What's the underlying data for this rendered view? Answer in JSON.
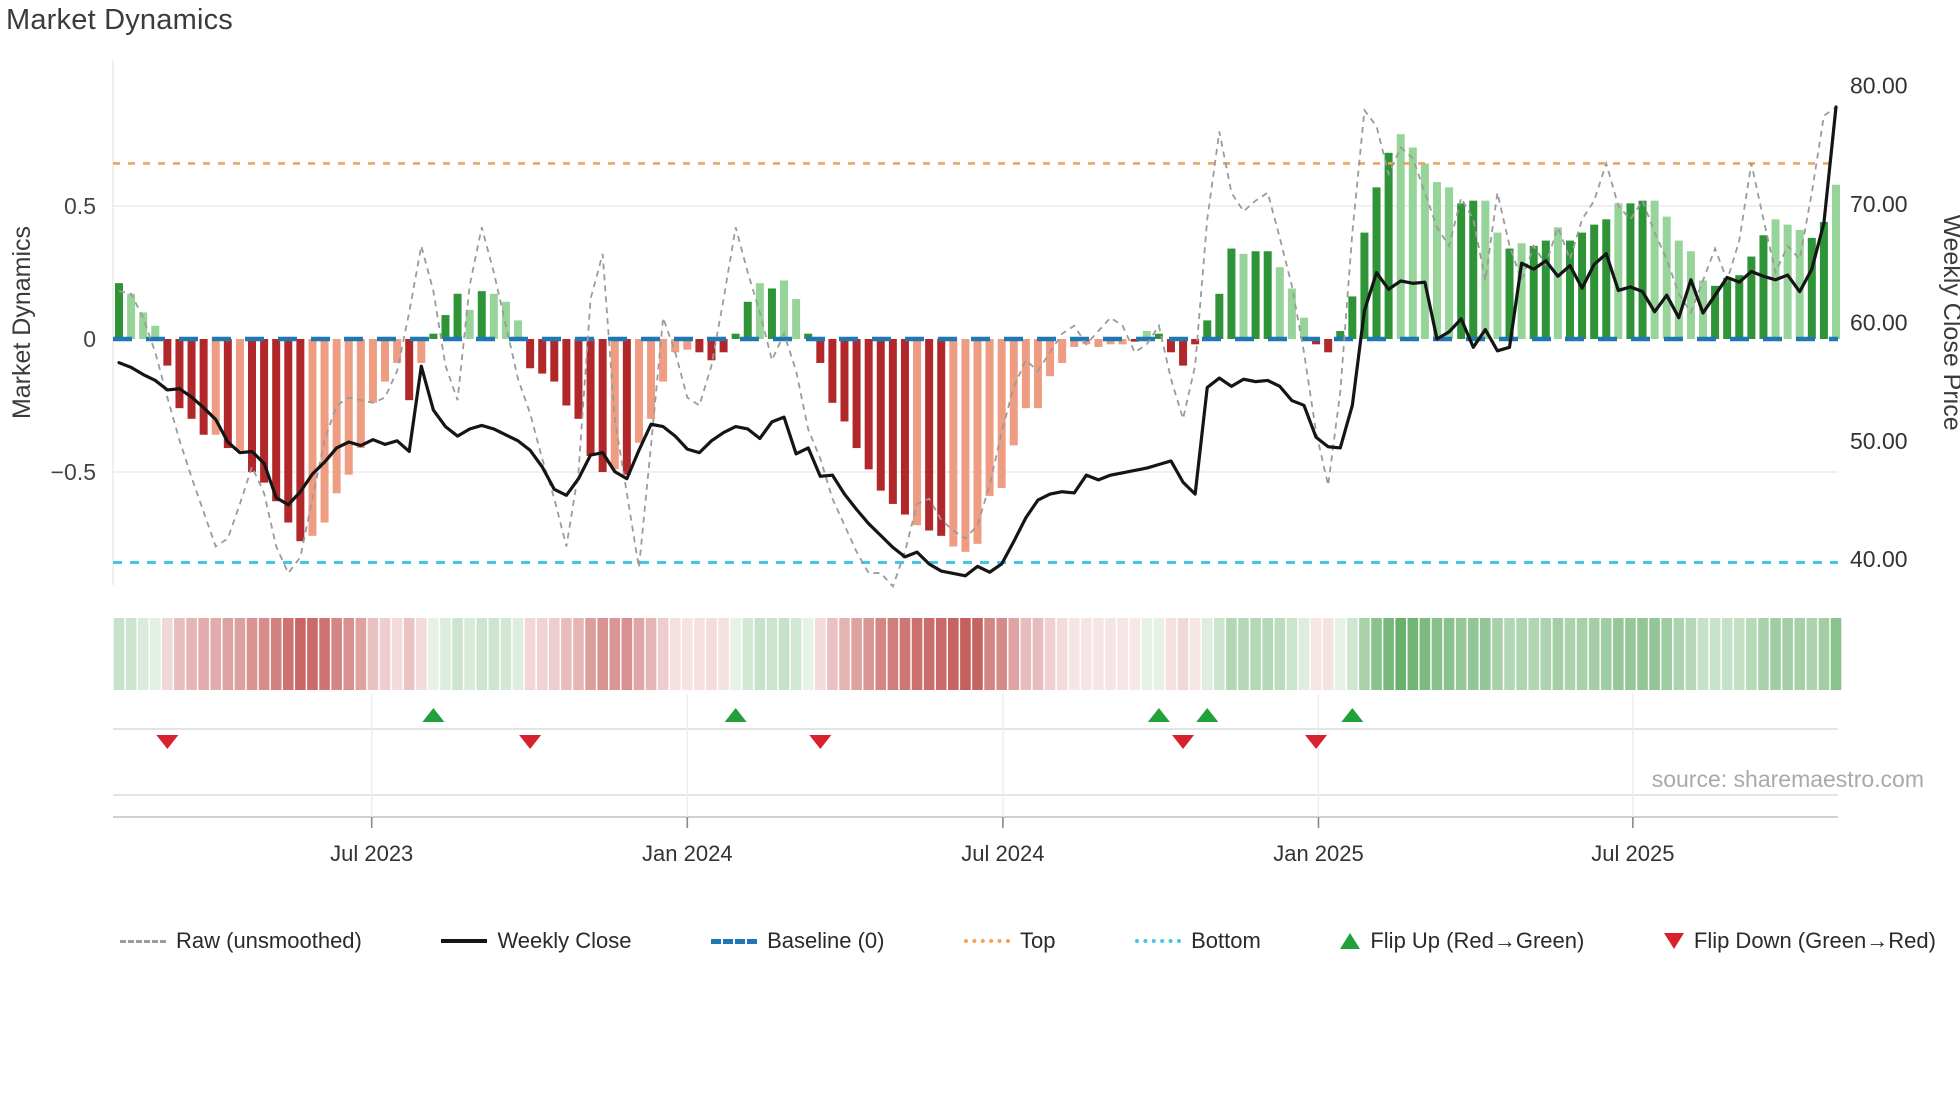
{
  "title": "Market Dynamics",
  "source": "source: sharemaestro.com",
  "colors": {
    "bar_pos_dark": "#2f9438",
    "bar_pos_light": "#97d49a",
    "bar_neg_dark": "#b2282a",
    "bar_neg_light": "#ee9d82",
    "raw_line": "#9b9b9b",
    "close_line": "#151515",
    "baseline": "#1f77b4",
    "top_line": "#f3a25a",
    "bottom_line": "#41c7e8",
    "flip_up": "#22a03c",
    "flip_down": "#d7212e",
    "grid": "#ececec",
    "axis_line": "#e8e8e8",
    "panel_line": "#dcdcdc",
    "frame_line": "#c9c9c9",
    "tick_text": "#333333",
    "title_text": "#3b3b3b",
    "heat_pos": [
      47,
      146,
      53
    ],
    "heat_neg": [
      178,
      40,
      38
    ]
  },
  "chart_data": {
    "type": "composite",
    "title": "Market Dynamics",
    "subplots": [
      "momentum bars + raw line + weekly close price line",
      "signal heatmap strip",
      "flip marker lane"
    ],
    "x_axis": {
      "tick_labels": [
        "Jul 2023",
        "Jan 2024",
        "Jul 2024",
        "Jan 2025",
        "Jul 2025"
      ],
      "tick_weeks": [
        21.9,
        48.0,
        74.1,
        100.2,
        126.2
      ],
      "n_weeks": 143
    },
    "y_left": {
      "title": "Market Dynamics",
      "ticks": [
        {
          "label": "0.5",
          "v": 0.5
        },
        {
          "label": "0",
          "v": 0
        },
        {
          "label": "−0.5",
          "v": -0.5
        }
      ],
      "range": [
        -0.98,
        1.0
      ]
    },
    "y_right": {
      "title": "Weekly Close Price",
      "ticks": [
        {
          "label": "80.00",
          "p": 80
        },
        {
          "label": "70.00",
          "p": 70
        },
        {
          "label": "60.00",
          "p": 60
        },
        {
          "label": "50.00",
          "p": 50
        },
        {
          "label": "40.00",
          "p": 40
        }
      ]
    },
    "thresholds": {
      "baseline": 0,
      "top": 0.66,
      "bottom": -0.84
    },
    "markers": {
      "flip_up_weeks": [
        27,
        52,
        87,
        91,
        103
      ],
      "flip_down_weeks": [
        5,
        35,
        59,
        89,
        100
      ]
    },
    "series": {
      "momentum_smoothed": [
        0.21,
        0.17,
        0.1,
        0.05,
        -0.1,
        -0.26,
        -0.3,
        -0.36,
        -0.36,
        -0.41,
        -0.42,
        -0.5,
        -0.54,
        -0.61,
        -0.69,
        -0.76,
        -0.74,
        -0.69,
        -0.58,
        -0.51,
        -0.41,
        -0.24,
        -0.16,
        -0.09,
        -0.23,
        -0.09,
        0.02,
        0.09,
        0.17,
        0.11,
        0.18,
        0.17,
        0.14,
        0.07,
        -0.11,
        -0.13,
        -0.16,
        -0.25,
        -0.3,
        -0.44,
        -0.5,
        -0.49,
        -0.51,
        -0.39,
        -0.3,
        -0.16,
        -0.05,
        -0.04,
        -0.05,
        -0.08,
        -0.05,
        0.02,
        0.14,
        0.21,
        0.19,
        0.22,
        0.15,
        0.02,
        -0.09,
        -0.24,
        -0.31,
        -0.41,
        -0.49,
        -0.57,
        -0.62,
        -0.66,
        -0.7,
        -0.72,
        -0.74,
        -0.78,
        -0.8,
        -0.77,
        -0.59,
        -0.56,
        -0.4,
        -0.26,
        -0.26,
        -0.14,
        -0.09,
        -0.03,
        -0.02,
        -0.03,
        -0.02,
        -0.02,
        -0.01,
        0.03,
        0.02,
        -0.05,
        -0.1,
        -0.02,
        0.07,
        0.17,
        0.34,
        0.32,
        0.33,
        0.33,
        0.27,
        0.19,
        0.08,
        -0.02,
        -0.05,
        0.03,
        0.16,
        0.4,
        0.57,
        0.7,
        0.77,
        0.72,
        0.66,
        0.59,
        0.57,
        0.51,
        0.52,
        0.52,
        0.4,
        0.34,
        0.36,
        0.35,
        0.37,
        0.42,
        0.37,
        0.4,
        0.43,
        0.45,
        0.51,
        0.51,
        0.52,
        0.52,
        0.46,
        0.37,
        0.33,
        0.22,
        0.2,
        0.23,
        0.24,
        0.31,
        0.39,
        0.45,
        0.43,
        0.41,
        0.38,
        0.44,
        0.58
      ],
      "shade": "dlllddddldldddddlllllllldldddldllldddddddldllllldddddldlldddddddddlddllllllllllllllldldddddddlddllldddddddlllllddlldlddlddddlddllllldddddllldd",
      "momentum_raw": [
        0.18,
        0.17,
        0.08,
        -0.05,
        -0.22,
        -0.38,
        -0.52,
        -0.65,
        -0.78,
        -0.75,
        -0.62,
        -0.48,
        -0.58,
        -0.78,
        -0.88,
        -0.82,
        -0.6,
        -0.38,
        -0.25,
        -0.22,
        -0.23,
        -0.24,
        -0.22,
        -0.12,
        0.1,
        0.35,
        0.18,
        -0.1,
        -0.23,
        0.2,
        0.42,
        0.25,
        0.05,
        -0.15,
        -0.28,
        -0.45,
        -0.6,
        -0.78,
        -0.5,
        0.15,
        0.32,
        -0.3,
        -0.58,
        -0.86,
        -0.4,
        0.08,
        -0.05,
        -0.22,
        -0.25,
        -0.1,
        0.15,
        0.42,
        0.25,
        0.1,
        -0.08,
        0.02,
        -0.12,
        -0.34,
        -0.45,
        -0.6,
        -0.7,
        -0.8,
        -0.88,
        -0.88,
        -0.93,
        -0.8,
        -0.62,
        -0.6,
        -0.68,
        -0.72,
        -0.75,
        -0.7,
        -0.55,
        -0.35,
        -0.18,
        -0.08,
        -0.12,
        -0.05,
        0.02,
        0.05,
        -0.02,
        0.03,
        0.08,
        0.05,
        -0.05,
        -0.02,
        0.05,
        -0.15,
        -0.3,
        -0.1,
        0.45,
        0.78,
        0.55,
        0.48,
        0.52,
        0.55,
        0.38,
        0.2,
        -0.05,
        -0.35,
        -0.55,
        -0.2,
        0.4,
        0.86,
        0.8,
        0.62,
        0.72,
        0.68,
        0.55,
        0.42,
        0.35,
        0.53,
        0.45,
        0.22,
        0.55,
        0.35,
        0.22,
        0.35,
        0.28,
        0.42,
        0.3,
        0.45,
        0.52,
        0.66,
        0.5,
        0.45,
        0.52,
        0.4,
        0.3,
        0.17,
        0.1,
        0.22,
        0.34,
        0.22,
        0.37,
        0.66,
        0.45,
        0.25,
        0.35,
        0.3,
        0.55,
        0.84,
        0.87
      ],
      "weekly_close": [
        56.6,
        56.2,
        55.6,
        55.1,
        54.3,
        54.4,
        53.7,
        52.8,
        51.8,
        49.9,
        49.0,
        49.1,
        48.1,
        45.2,
        44.6,
        45.7,
        47.2,
        48.2,
        49.4,
        49.9,
        49.6,
        50.1,
        49.7,
        50.0,
        49.1,
        56.3,
        52.6,
        51.2,
        50.4,
        51.0,
        51.3,
        51.0,
        50.5,
        50.0,
        49.2,
        47.8,
        45.9,
        45.4,
        46.8,
        48.8,
        49.0,
        47.4,
        46.8,
        49.2,
        51.4,
        51.2,
        50.4,
        49.3,
        49.0,
        50.0,
        50.7,
        51.2,
        51.0,
        50.2,
        51.6,
        52.0,
        48.9,
        49.4,
        47.0,
        47.1,
        45.5,
        44.2,
        43.0,
        42.0,
        41.0,
        40.2,
        40.6,
        39.6,
        39.0,
        38.8,
        38.6,
        39.4,
        38.9,
        39.6,
        41.5,
        43.5,
        45.0,
        45.5,
        45.7,
        45.6,
        47.1,
        46.7,
        47.1,
        47.3,
        47.5,
        47.7,
        48.0,
        48.3,
        46.5,
        45.5,
        54.5,
        55.3,
        54.6,
        55.2,
        55.0,
        55.1,
        54.6,
        53.4,
        53.0,
        50.3,
        49.5,
        49.4,
        53.0,
        61.0,
        64.2,
        62.8,
        63.5,
        63.3,
        63.4,
        58.6,
        59.2,
        60.3,
        57.9,
        59.4,
        57.6,
        57.9,
        65.0,
        64.5,
        65.2,
        63.9,
        64.8,
        62.9,
        64.9,
        65.8,
        62.7,
        63.0,
        62.6,
        60.9,
        62.3,
        60.4,
        63.6,
        60.8,
        62.3,
        63.8,
        63.4,
        64.3,
        63.9,
        63.6,
        64.0,
        62.6,
        64.5,
        68.4,
        78.2
      ]
    },
    "legend_position": "bottom"
  },
  "legend": {
    "items": [
      {
        "key": "raw",
        "label": "Raw (unsmoothed)"
      },
      {
        "key": "close",
        "label": "Weekly Close"
      },
      {
        "key": "baseline",
        "label": "Baseline (0)"
      },
      {
        "key": "top",
        "label": "Top"
      },
      {
        "key": "bottom",
        "label": "Bottom"
      },
      {
        "key": "flip_up",
        "label": "Flip Up (Red→Green)"
      },
      {
        "key": "flip_down",
        "label": "Flip Down (Green→Red)"
      }
    ]
  }
}
